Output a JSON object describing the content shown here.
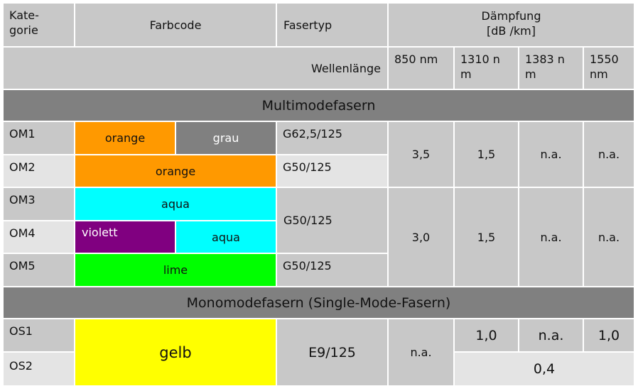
{
  "header": {
    "category": "Kate-\ngorie",
    "color_code": "Farbcode",
    "fiber_type": "Fasertyp",
    "attenuation": "Dämpfung\n[dB /km]",
    "wavelength": "Wellenlänge",
    "wl_850": "850 nm",
    "wl_1310": "1310 n\nm",
    "wl_1383": "1383 n\nm",
    "wl_1550": "1550\nnm"
  },
  "sections": {
    "multimode": "Multimodefasern",
    "singlemode": "Monomodefasern (Single-Mode-Fasern)"
  },
  "rows": [
    {
      "category": "OM1",
      "colors": [
        "orange",
        "grau"
      ],
      "fiber_type": "G62,5/125"
    },
    {
      "category": "OM2",
      "colors": [
        "orange"
      ],
      "fiber_type": "G50/125"
    },
    {
      "category": "OM3",
      "colors": [
        "aqua"
      ],
      "fiber_type": ""
    },
    {
      "category": "OM4",
      "colors": [
        "violett",
        "aqua"
      ],
      "fiber_type": ""
    },
    {
      "category": "OM5",
      "colors": [
        "lime"
      ],
      "fiber_type": "G50/125"
    },
    {
      "category": "OS1",
      "colors": [
        "gelb"
      ],
      "fiber_type": ""
    },
    {
      "category": "OS2",
      "colors": [],
      "fiber_type": ""
    }
  ],
  "merged": {
    "om34_fiber_type": "G50/125",
    "os_fiber_type": "E9/125"
  },
  "values": {
    "om12": {
      "wl_850": "3,5",
      "wl_1310": "1,5",
      "wl_1383": "n.a.",
      "wl_1550": "n.a."
    },
    "om345": {
      "wl_850": "3,0",
      "wl_1310": "1,5",
      "wl_1383": "n.a.",
      "wl_1550": "n.a."
    },
    "os": {
      "wl_850": "n.a.",
      "os1_1310": "1,0",
      "os1_1383": "n.a.",
      "os1_1550": "1,0",
      "os2_combined": "0,4"
    }
  },
  "swatches": {
    "orange": "#ff9900",
    "grau": "#808080",
    "aqua": "#00ffff",
    "violett": "#800080",
    "lime": "#00ff00",
    "gelb": "#ffff00"
  }
}
